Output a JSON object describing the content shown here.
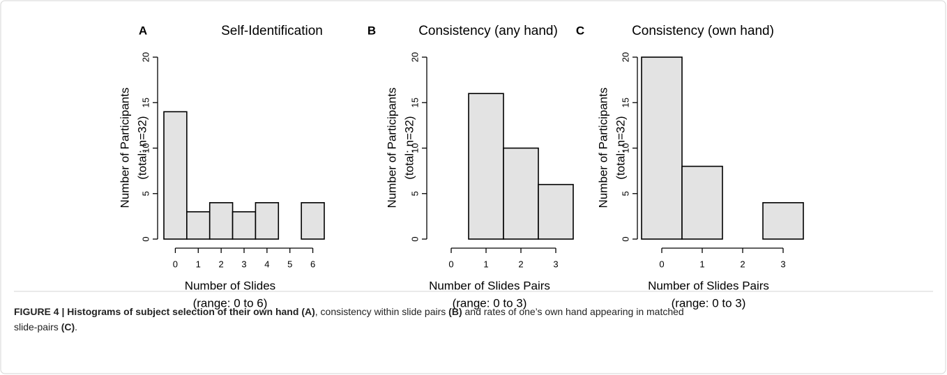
{
  "chart_data": [
    {
      "type": "histogram",
      "panel": "A",
      "title": "Self-Identification",
      "ylabel": [
        "Number of Participants",
        "(total: n=32)"
      ],
      "xlabel": [
        "Number of Slides",
        "(range: 0 to 6)"
      ],
      "bins": [
        -0.5,
        0.5,
        1.5,
        2.5,
        3.5,
        4.5,
        5.5,
        6.5
      ],
      "counts": [
        14,
        3,
        4,
        3,
        4,
        0,
        4
      ],
      "color": "#e3e3e3",
      "xlim": [
        -0.5,
        6.5
      ],
      "xticks": [
        0,
        1,
        2,
        3,
        4,
        5,
        6
      ],
      "ylim": [
        0,
        20
      ],
      "yticks": [
        0,
        5,
        10,
        15,
        20
      ]
    },
    {
      "type": "histogram",
      "panel": "B",
      "title": "Consistency (any hand)",
      "ylabel": [
        "Number of Participants",
        "(total: n=32)"
      ],
      "xlabel": [
        "Number of Slides Pairs",
        "(range: 0 to 3)"
      ],
      "bins": [
        -0.5,
        0.5,
        1.5,
        2.5,
        3.5
      ],
      "counts": [
        0,
        16,
        10,
        6
      ],
      "color": "#e3e3e3",
      "xlim": [
        -0.5,
        3.5
      ],
      "xticks": [
        0,
        1,
        2,
        3
      ],
      "ylim": [
        0,
        20
      ],
      "yticks": [
        0,
        5,
        10,
        15,
        20
      ]
    },
    {
      "type": "histogram",
      "panel": "C",
      "title": "Consistency (own hand)",
      "ylabel": [
        "Number of Participants",
        "(total: n=32)"
      ],
      "xlabel": [
        "Number of Slides Pairs",
        "(range: 0 to 3)"
      ],
      "bins": [
        -0.5,
        0.5,
        1.5,
        2.5,
        3.5
      ],
      "counts": [
        20,
        8,
        0,
        4
      ],
      "color": "#e3e3e3",
      "xlim": [
        -0.5,
        3.5
      ],
      "xticks": [
        0,
        1,
        2,
        3
      ],
      "ylim": [
        0,
        20
      ],
      "yticks": [
        0,
        5,
        10,
        15,
        20
      ]
    }
  ],
  "caption": {
    "lines": [
      [
        {
          "text": "FIGURE 4 | Histograms of subject selection of their own hand",
          "bold": true
        },
        {
          "text": " ",
          "bold": false
        },
        {
          "text": "(A)",
          "bold": true
        },
        {
          "text": ", consistency within slide pairs ",
          "bold": false
        },
        {
          "text": "(B)",
          "bold": true
        },
        {
          "text": " and rates of one’s own hand appearing in matched",
          "bold": false
        }
      ],
      [
        {
          "text": "slide-pairs ",
          "bold": false
        },
        {
          "text": "(C)",
          "bold": true
        },
        {
          "text": ".",
          "bold": false
        }
      ]
    ]
  }
}
